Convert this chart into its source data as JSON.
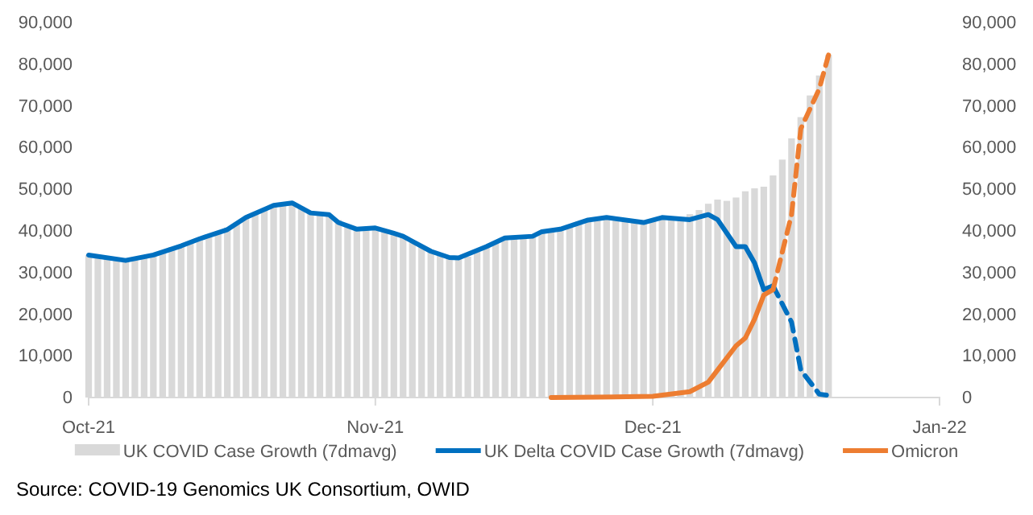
{
  "chart_data": {
    "type": "bar",
    "xlim": [
      "2021-10-01",
      "2022-01-01"
    ],
    "xticks": [
      {
        "value": "2021-10-01",
        "label": "Oct-21"
      },
      {
        "value": "2021-11-01",
        "label": "Nov-21"
      },
      {
        "value": "2021-12-01",
        "label": "Dec-21"
      },
      {
        "value": "2022-01-01",
        "label": "Jan-22"
      }
    ],
    "ylim": [
      0,
      90000
    ],
    "yticks": [
      0,
      {
        "value": 10000,
        "label": "10,000"
      },
      {
        "value": 20000,
        "label": "20,000"
      },
      {
        "value": 30000,
        "label": "30,000"
      },
      {
        "value": 40000,
        "label": "40,000"
      },
      {
        "value": 50000,
        "label": "50,000"
      },
      {
        "value": 60000,
        "label": "60,000"
      },
      {
        "value": 70000,
        "label": "70,000"
      },
      {
        "value": 80000,
        "label": "80,000"
      },
      {
        "value": 90000,
        "label": "90,000"
      }
    ],
    "y2lim": [
      0,
      90000
    ],
    "y2ticks": [
      0,
      {
        "value": 10000,
        "label": "10,000"
      },
      {
        "value": 20000,
        "label": "20,000"
      },
      {
        "value": 30000,
        "label": "30,000"
      },
      {
        "value": 40000,
        "label": "40,000"
      },
      {
        "value": 50000,
        "label": "50,000"
      },
      {
        "value": 60000,
        "label": "60,000"
      },
      {
        "value": 70000,
        "label": "70,000"
      },
      {
        "value": 80000,
        "label": "80,000"
      },
      {
        "value": 90000,
        "label": "90,000"
      }
    ],
    "legend": "bottom",
    "grid": false,
    "annotations": [
      "Source: COVID-19 Genomics UK Consortium, OWID"
    ],
    "series": [
      {
        "name": "UK COVID Case Growth (7dmavg)",
        "color": "#d9d9d9",
        "x": [
          "2021-10-01",
          "2021-10-02",
          "2021-10-03",
          "2021-10-04",
          "2021-10-05",
          "2021-10-06",
          "2021-10-07",
          "2021-10-08",
          "2021-10-09",
          "2021-10-10",
          "2021-10-11",
          "2021-10-12",
          "2021-10-13",
          "2021-10-14",
          "2021-10-15",
          "2021-10-16",
          "2021-10-17",
          "2021-10-18",
          "2021-10-19",
          "2021-10-20",
          "2021-10-21",
          "2021-10-22",
          "2021-10-23",
          "2021-10-24",
          "2021-10-25",
          "2021-10-26",
          "2021-10-27",
          "2021-10-28",
          "2021-10-29",
          "2021-10-30",
          "2021-10-31",
          "2021-11-01",
          "2021-11-02",
          "2021-11-03",
          "2021-11-04",
          "2021-11-05",
          "2021-11-06",
          "2021-11-07",
          "2021-11-08",
          "2021-11-09",
          "2021-11-10",
          "2021-11-11",
          "2021-11-12",
          "2021-11-13",
          "2021-11-14",
          "2021-11-15",
          "2021-11-16",
          "2021-11-17",
          "2021-11-18",
          "2021-11-19",
          "2021-11-20",
          "2021-11-21",
          "2021-11-22",
          "2021-11-23",
          "2021-11-24",
          "2021-11-25",
          "2021-11-26",
          "2021-11-27",
          "2021-11-28",
          "2021-11-29",
          "2021-11-30",
          "2021-12-01",
          "2021-12-02",
          "2021-12-03",
          "2021-12-04",
          "2021-12-05",
          "2021-12-06",
          "2021-12-07",
          "2021-12-08",
          "2021-12-09",
          "2021-12-10",
          "2021-12-11",
          "2021-12-12",
          "2021-12-13",
          "2021-12-14",
          "2021-12-15",
          "2021-12-16",
          "2021-12-17",
          "2021-12-18",
          "2021-12-19",
          "2021-12-20"
        ],
        "values": [
          34200,
          33900,
          33500,
          33000,
          32900,
          33200,
          33700,
          34200,
          35300,
          36100,
          36700,
          37300,
          37800,
          38500,
          39600,
          40800,
          42000,
          43200,
          44200,
          45200,
          46100,
          46500,
          46700,
          45800,
          44300,
          44100,
          43900,
          42600,
          41500,
          40500,
          40600,
          40700,
          39900,
          39200,
          38700,
          37600,
          36200,
          35100,
          34100,
          33600,
          33500,
          33800,
          35000,
          36000,
          37200,
          38100,
          38500,
          38700,
          39200,
          39800,
          40200,
          40500,
          41400,
          42300,
          42800,
          43000,
          43200,
          43000,
          42600,
          42200,
          42000,
          42800,
          43200,
          43000,
          42900,
          44000,
          45000,
          46500,
          47500,
          47200,
          48000,
          49500,
          50200,
          50600,
          53300,
          57100,
          62200,
          67300,
          72500,
          77300,
          82200
        ]
      },
      {
        "name": "UK Delta COVID Case Growth (7dmavg)",
        "type": "line",
        "color": "#0070c0",
        "line_style": "solid",
        "x": [
          "2021-10-01",
          "2021-10-05",
          "2021-10-08",
          "2021-10-11",
          "2021-10-13",
          "2021-10-16",
          "2021-10-18",
          "2021-10-21",
          "2021-10-23",
          "2021-10-25",
          "2021-10-27",
          "2021-10-28",
          "2021-10-30",
          "2021-11-01",
          "2021-11-03",
          "2021-11-04",
          "2021-11-07",
          "2021-11-09",
          "2021-11-10",
          "2021-11-13",
          "2021-11-15",
          "2021-11-18",
          "2021-11-19",
          "2021-11-21",
          "2021-11-24",
          "2021-11-26",
          "2021-11-30",
          "2021-12-02",
          "2021-12-05",
          "2021-12-07",
          "2021-12-08",
          "2021-12-10",
          "2021-12-11",
          "2021-12-12",
          "2021-12-13",
          "2021-12-14"
        ],
        "values": [
          34200,
          32900,
          34200,
          36400,
          38100,
          40300,
          43200,
          46100,
          46700,
          44300,
          43900,
          42000,
          40400,
          40700,
          39400,
          38700,
          35100,
          33600,
          33500,
          36200,
          38300,
          38700,
          39800,
          40400,
          42600,
          43200,
          42000,
          43200,
          42700,
          43900,
          42700,
          36200,
          36200,
          32300,
          25900,
          26800
        ]
      },
      {
        "type": "line",
        "color": "#0070c0",
        "line_style": "dashed",
        "x": [
          "2021-12-14",
          "2021-12-16",
          "2021-12-17",
          "2021-12-19",
          "2021-12-20"
        ],
        "values": [
          26800,
          18100,
          6600,
          800,
          500
        ]
      },
      {
        "name": "Omicron",
        "type": "line",
        "color": "#ed7d31",
        "line_style": "solid",
        "x": [
          "2021-11-20",
          "2021-11-25",
          "2021-12-01",
          "2021-12-05",
          "2021-12-07",
          "2021-12-08",
          "2021-12-10",
          "2021-12-11",
          "2021-12-12",
          "2021-12-13",
          "2021-12-14"
        ],
        "values": [
          0,
          100,
          300,
          1400,
          3700,
          6600,
          12400,
          14300,
          18800,
          24600,
          25900
        ]
      },
      {
        "type": "line",
        "color": "#ed7d31",
        "line_style": "dashed",
        "x": [
          "2021-12-14",
          "2021-12-16",
          "2021-12-17",
          "2021-12-19",
          "2021-12-20"
        ],
        "values": [
          25900,
          43900,
          64500,
          74100,
          82200
        ]
      }
    ]
  }
}
